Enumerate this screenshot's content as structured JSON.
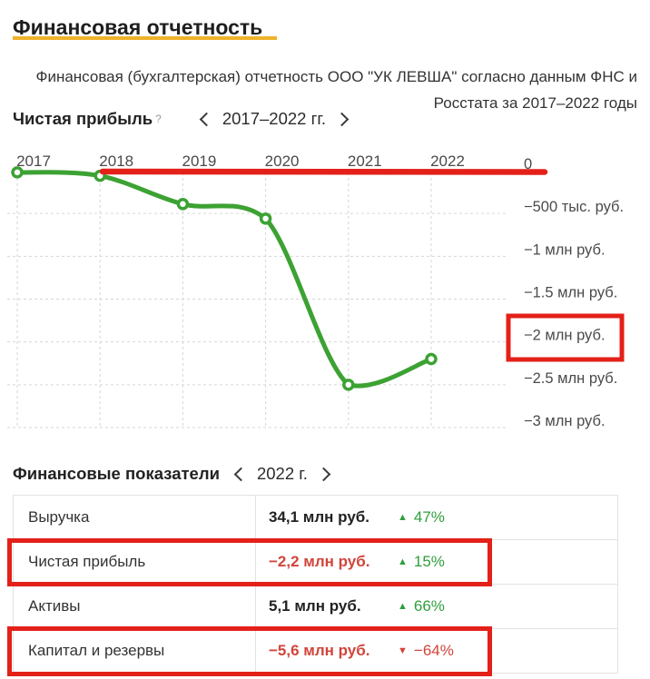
{
  "page": {
    "title": "Финансовая отчетность",
    "description_lines": [
      "Финансовая (бухгалтерская) отчетность ООО \"УК ЛЕВША\" согласно данным ФНС и",
      "Росстата за 2017–2022 годы"
    ]
  },
  "chart_section": {
    "title": "Чистая прибыль",
    "help_label": "?",
    "nav": {
      "prev_icon": "chevron-left",
      "range_label": "2017–2022 гг.",
      "next_icon": "chevron-right"
    }
  },
  "chart_data": {
    "type": "line",
    "title": "Чистая прибыль",
    "x": [
      "2017",
      "2018",
      "2019",
      "2020",
      "2021",
      "2022"
    ],
    "series": [
      {
        "name": "Чистая прибыль, тыс. руб.",
        "values": [
          -20,
          -60,
          -390,
          -560,
          -2500,
          -2200
        ]
      }
    ],
    "unit": "тыс. руб.",
    "ylim": [
      -3000,
      0
    ],
    "ytick_labels": [
      "0",
      "−500 тыс. руб.",
      "−1 млн руб.",
      "−1.5 млн руб.",
      "−2 млн руб.",
      "−2.5 млн руб.",
      "−3 млн руб."
    ],
    "grid": "dashed",
    "line_color": "#3ca233",
    "marker": "open-circle",
    "annotations": [
      {
        "type": "line",
        "label": "zero-level-highlight",
        "color": "#e32119",
        "from_x": "2018",
        "to_x": "right-edge",
        "at_value": 0
      },
      {
        "type": "box",
        "label": "highlight-minus-2-mln-label",
        "color": "#e32119",
        "around": "−2 млн руб."
      }
    ]
  },
  "table_section": {
    "title": "Финансовые показатели",
    "nav": {
      "prev_icon": "chevron-left",
      "year_label": "2022 г.",
      "next_icon": "chevron-right"
    },
    "rows": [
      {
        "label": "Выручка",
        "value": "34,1 млн руб.",
        "arrow": "▲",
        "change": "47%",
        "trend": "up",
        "value_negative": false,
        "highlighted": false
      },
      {
        "label": "Чистая прибыль",
        "value": "−2,2 млн руб.",
        "arrow": "▲",
        "change": "15%",
        "trend": "up",
        "value_negative": true,
        "highlighted": true
      },
      {
        "label": "Активы",
        "value": "5,1 млн руб.",
        "arrow": "▲",
        "change": "66%",
        "trend": "up",
        "value_negative": false,
        "highlighted": false
      },
      {
        "label": "Капитал и резервы",
        "value": "−5,6 млн руб.",
        "arrow": "▼",
        "change": "−64%",
        "trend": "down",
        "value_negative": true,
        "highlighted": true
      }
    ]
  },
  "colors": {
    "accent_yellow": "#edb32a",
    "annotation_red": "#e32119",
    "chart_green": "#3ca233",
    "text_green": "#2f9e3c",
    "text_red": "#d2443a",
    "grid_gray": "#d6d6d6"
  }
}
